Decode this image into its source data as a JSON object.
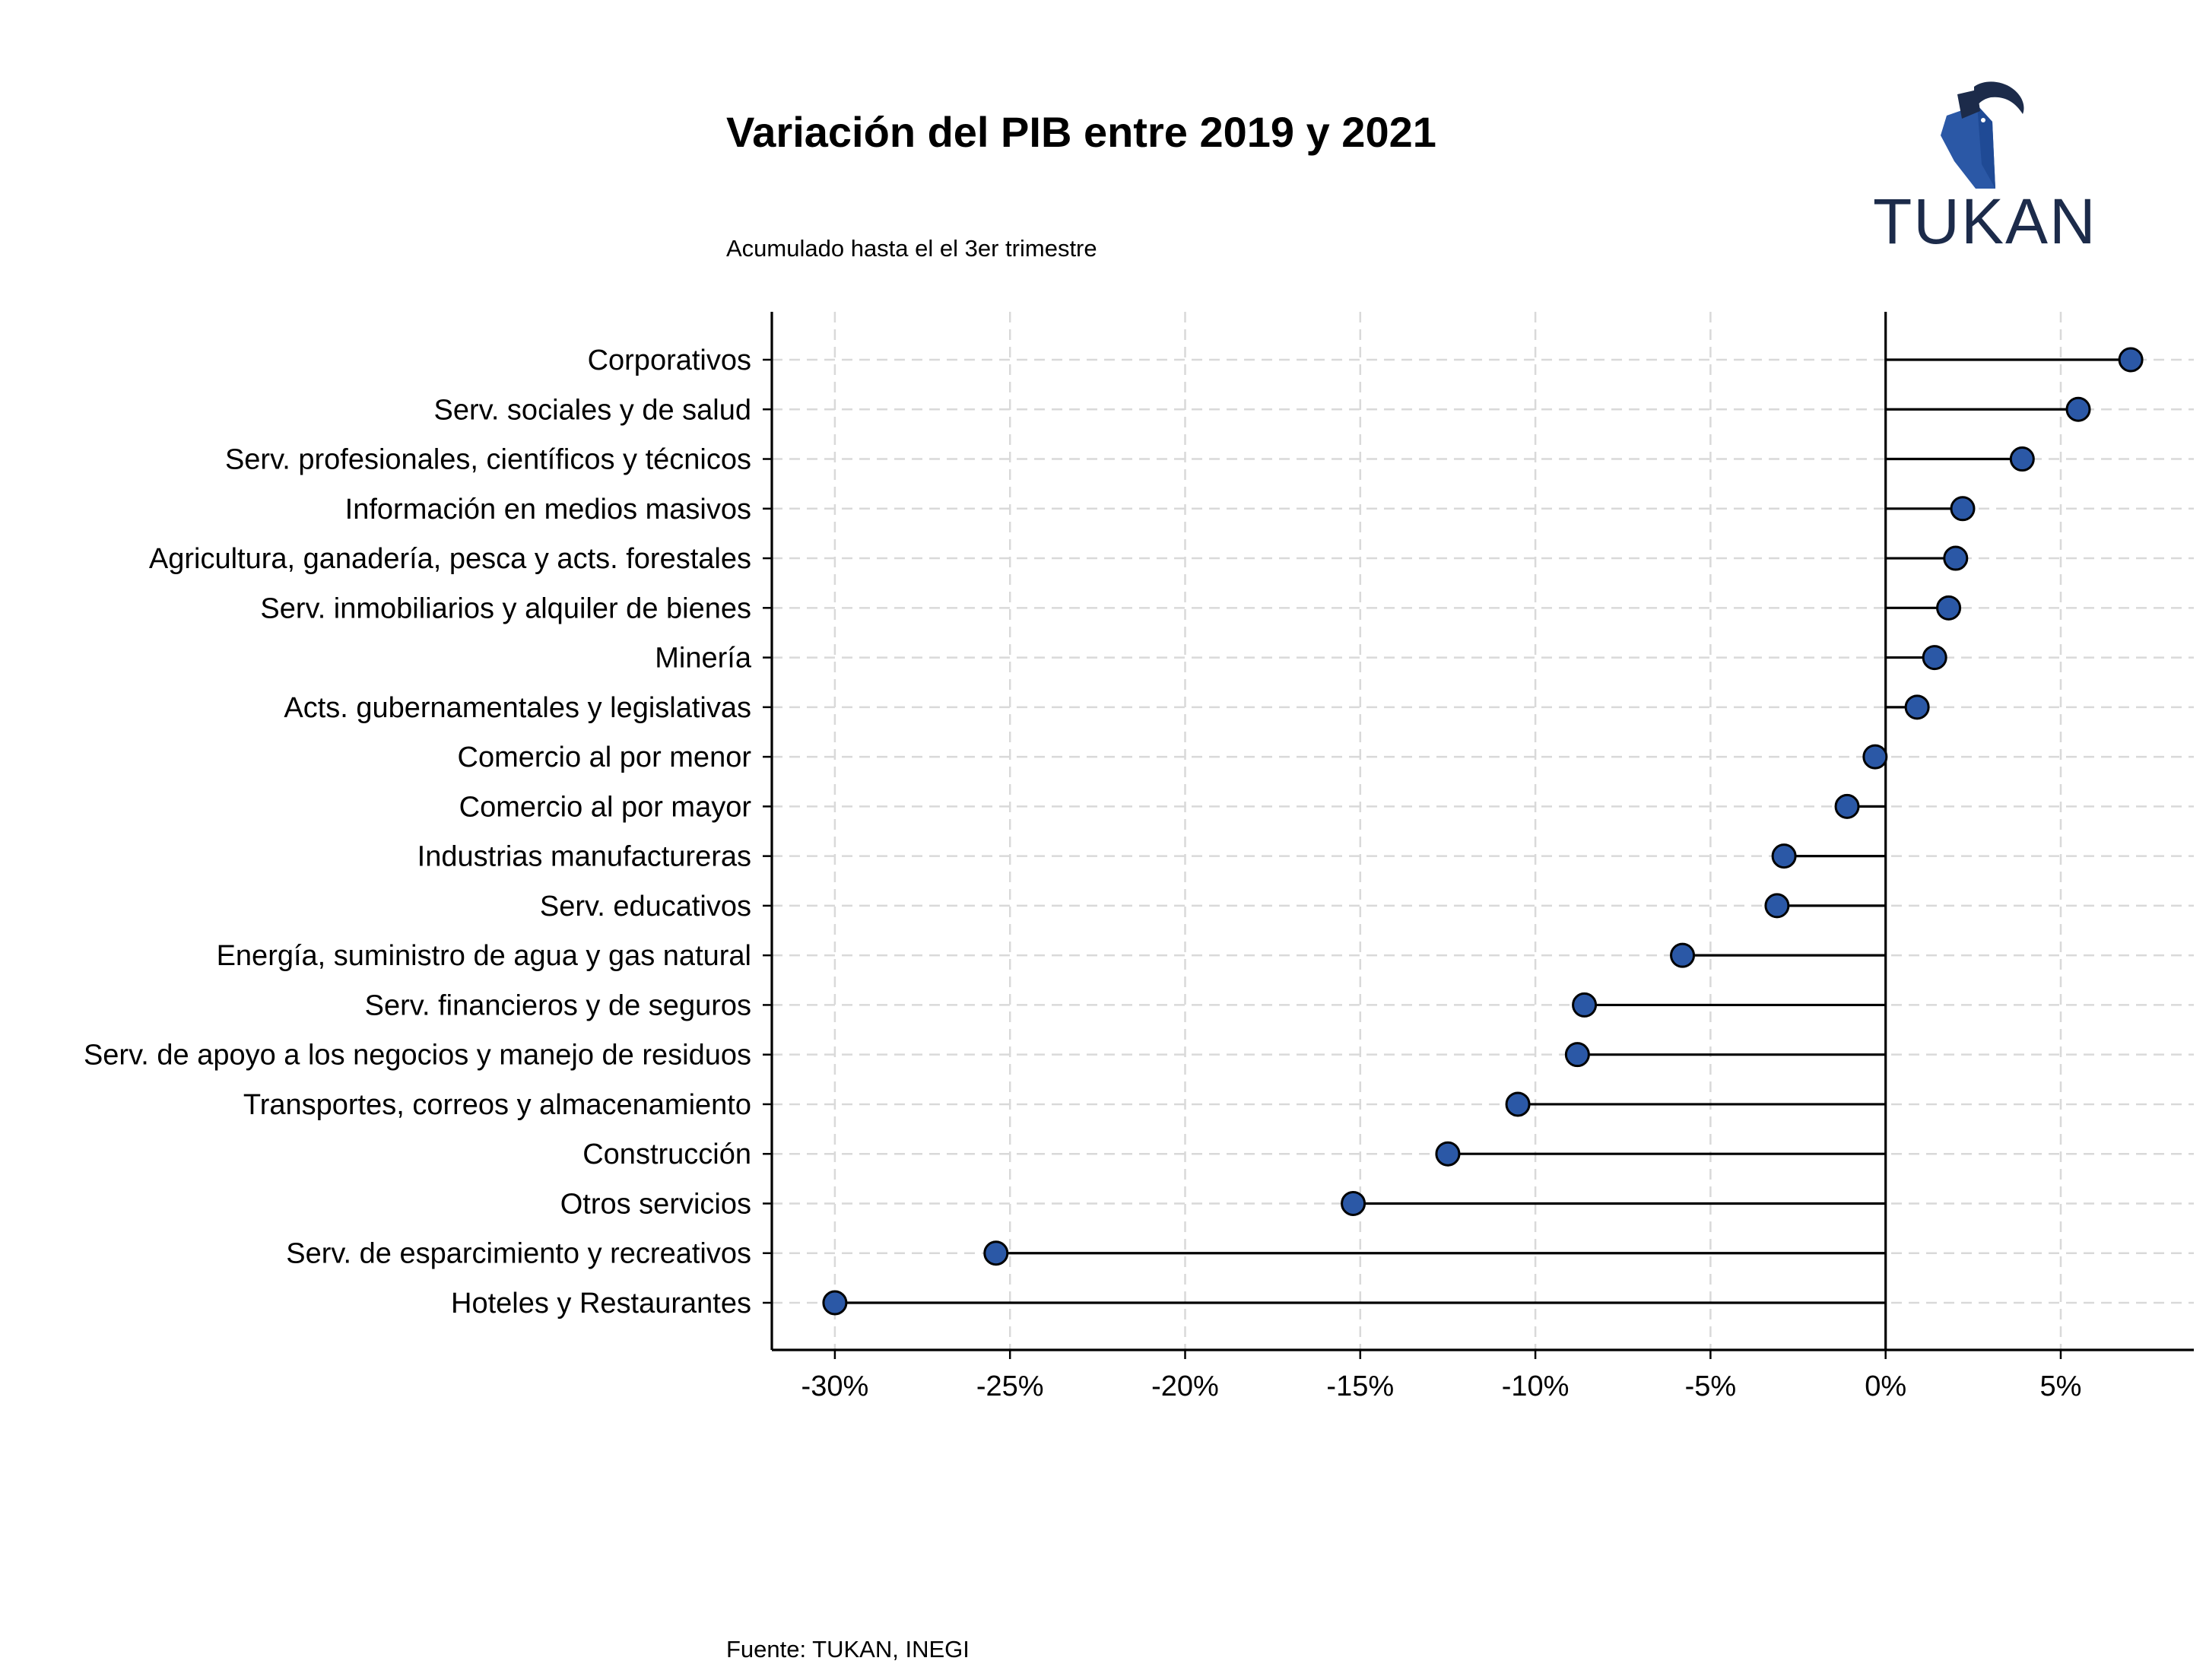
{
  "chart_data": {
    "type": "lollipop",
    "title": "Variación del PIB entre 2019 y 2021",
    "subtitle": "Acumulado hasta el el 3er trimestre",
    "source": "Fuente: TUKAN, INEGI",
    "xlabel": "",
    "ylabel": "",
    "xlim": [
      -31.8,
      8.8
    ],
    "x_ticks": [
      -30,
      -25,
      -20,
      -15,
      -10,
      -5,
      0,
      5
    ],
    "x_tick_labels": [
      "-30%",
      "-25%",
      "-20%",
      "-15%",
      "-10%",
      "-5%",
      "0%",
      "5%"
    ],
    "grid": true,
    "categories": [
      "Corporativos",
      "Serv. sociales y de salud",
      "Serv. profesionales, científicos y técnicos",
      "Información en medios masivos",
      "Agricultura, ganadería, pesca y acts. forestales",
      "Serv. inmobiliarios y alquiler de bienes",
      "Minería",
      "Acts. gubernamentales y legislativas",
      "Comercio al por menor",
      "Comercio al por mayor",
      "Industrias manufactureras",
      "Serv. educativos",
      "Energía, suministro de agua y gas natural",
      "Serv. financieros y de seguros",
      "Serv. de apoyo a los negocios y manejo de residuos",
      "Transportes, correos y almacenamiento",
      "Construcción",
      "Otros servicios",
      "Serv. de esparcimiento y recreativos",
      "Hoteles y Restaurantes"
    ],
    "values": [
      7.0,
      5.5,
      3.9,
      2.2,
      2.0,
      1.8,
      1.4,
      0.9,
      -0.3,
      -1.1,
      -2.9,
      -3.1,
      -5.8,
      -8.6,
      -8.8,
      -10.5,
      -12.5,
      -15.2,
      -25.4,
      -30.0
    ],
    "marker_color": "#2b58a6",
    "marker_edge_color": "#000000",
    "stem_color": "#000000",
    "grid_color": "#d9d9d9"
  },
  "logo": {
    "text": "TUKAN",
    "icon": "toucan-icon",
    "color": "#1c2b4a",
    "accent": "#2b58a6"
  }
}
